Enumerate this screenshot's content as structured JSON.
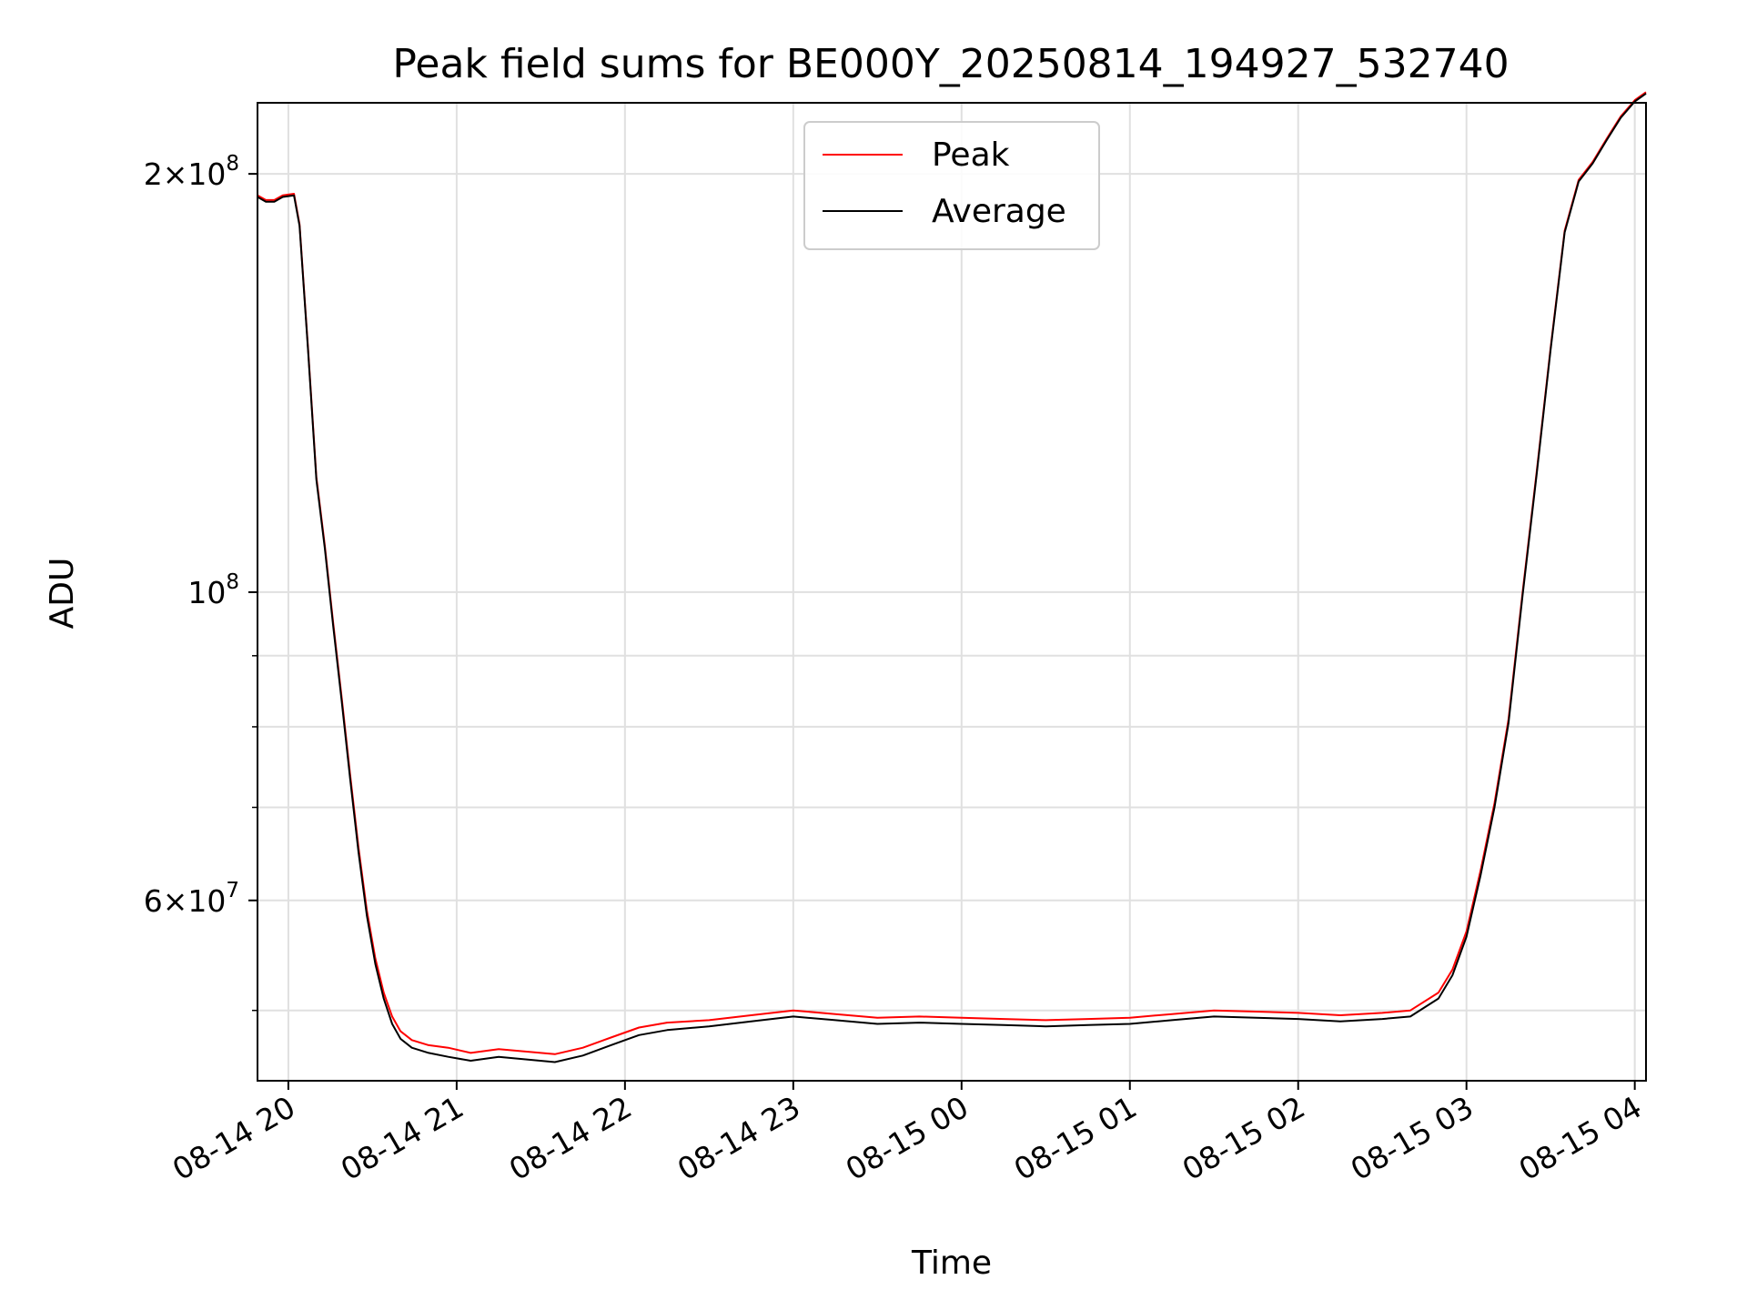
{
  "chart_data": {
    "type": "line",
    "title": "Peak field sums for BE000Y_20250814_194927_532740",
    "xlabel": "Time",
    "ylabel": "ADU",
    "yscale": "log",
    "ylim": [
      44500000,
      225000000
    ],
    "xlim": [
      "2025-08-14 19:49",
      "2025-08-15 04:04"
    ],
    "xticks": [
      {
        "t": "2025-08-14 20:00",
        "label": "08-14 20"
      },
      {
        "t": "2025-08-14 21:00",
        "label": "08-14 21"
      },
      {
        "t": "2025-08-14 22:00",
        "label": "08-14 22"
      },
      {
        "t": "2025-08-14 23:00",
        "label": "08-14 23"
      },
      {
        "t": "2025-08-15 00:00",
        "label": "08-15 00"
      },
      {
        "t": "2025-08-15 01:00",
        "label": "08-15 01"
      },
      {
        "t": "2025-08-15 02:00",
        "label": "08-15 02"
      },
      {
        "t": "2025-08-15 03:00",
        "label": "08-15 03"
      },
      {
        "t": "2025-08-15 04:00",
        "label": "08-15 04"
      }
    ],
    "yticks_major": [
      {
        "value": 60000000,
        "base": "6×10",
        "exp": "7"
      },
      {
        "value": 100000000,
        "base": "10",
        "exp": "8"
      },
      {
        "value": 200000000,
        "base": "2×10",
        "exp": "8"
      }
    ],
    "yticks_minor": [
      50000000,
      70000000,
      80000000,
      90000000
    ],
    "grid": true,
    "legend_position": "top-center",
    "series": [
      {
        "name": "Peak",
        "color": "#ff0000",
        "x": [
          "2025-08-14 19:49",
          "2025-08-14 19:52",
          "2025-08-14 19:55",
          "2025-08-14 19:58",
          "2025-08-14 20:02",
          "2025-08-14 20:04",
          "2025-08-14 20:07",
          "2025-08-14 20:10",
          "2025-08-14 20:13",
          "2025-08-14 20:16",
          "2025-08-14 20:19",
          "2025-08-14 20:22",
          "2025-08-14 20:25",
          "2025-08-14 20:28",
          "2025-08-14 20:31",
          "2025-08-14 20:34",
          "2025-08-14 20:37",
          "2025-08-14 20:40",
          "2025-08-14 20:44",
          "2025-08-14 20:50",
          "2025-08-14 20:57",
          "2025-08-14 21:05",
          "2025-08-14 21:15",
          "2025-08-14 21:25",
          "2025-08-14 21:35",
          "2025-08-14 21:45",
          "2025-08-14 21:55",
          "2025-08-14 22:05",
          "2025-08-14 22:15",
          "2025-08-14 22:30",
          "2025-08-14 22:45",
          "2025-08-14 23:00",
          "2025-08-14 23:15",
          "2025-08-14 23:30",
          "2025-08-14 23:45",
          "2025-08-15 00:00",
          "2025-08-15 00:15",
          "2025-08-15 00:30",
          "2025-08-15 00:45",
          "2025-08-15 01:00",
          "2025-08-15 01:15",
          "2025-08-15 01:30",
          "2025-08-15 01:45",
          "2025-08-15 02:00",
          "2025-08-15 02:15",
          "2025-08-15 02:30",
          "2025-08-15 02:40",
          "2025-08-15 02:50",
          "2025-08-15 02:55",
          "2025-08-15 03:00",
          "2025-08-15 03:05",
          "2025-08-15 03:10",
          "2025-08-15 03:15",
          "2025-08-15 03:20",
          "2025-08-15 03:25",
          "2025-08-15 03:30",
          "2025-08-15 03:35",
          "2025-08-15 03:40",
          "2025-08-15 03:45",
          "2025-08-15 03:50",
          "2025-08-15 03:55",
          "2025-08-15 04:00",
          "2025-08-15 04:04"
        ],
        "y": [
          193000000,
          191500000,
          191500000,
          193000000,
          193500000,
          184000000,
          150000000,
          121000000,
          108000000,
          95000000,
          84000000,
          74000000,
          65500000,
          59000000,
          54500000,
          51500000,
          49500000,
          48300000,
          47600000,
          47200000,
          47000000,
          46600000,
          46900000,
          46700000,
          46500000,
          47000000,
          47800000,
          48600000,
          49000000,
          49200000,
          49600000,
          50000000,
          49700000,
          49400000,
          49500000,
          49400000,
          49300000,
          49200000,
          49300000,
          49400000,
          49700000,
          50000000,
          49900000,
          49800000,
          49600000,
          49800000,
          50000000,
          51500000,
          53500000,
          57000000,
          63000000,
          70500000,
          81000000,
          100000000,
          122000000,
          150000000,
          182000000,
          198000000,
          204000000,
          212000000,
          220000000,
          226000000,
          229000000
        ]
      },
      {
        "name": "Average",
        "color": "#000000",
        "x": [
          "2025-08-14 19:49",
          "2025-08-14 19:52",
          "2025-08-14 19:55",
          "2025-08-14 19:58",
          "2025-08-14 20:02",
          "2025-08-14 20:04",
          "2025-08-14 20:07",
          "2025-08-14 20:10",
          "2025-08-14 20:13",
          "2025-08-14 20:16",
          "2025-08-14 20:19",
          "2025-08-14 20:22",
          "2025-08-14 20:25",
          "2025-08-14 20:28",
          "2025-08-14 20:31",
          "2025-08-14 20:34",
          "2025-08-14 20:37",
          "2025-08-14 20:40",
          "2025-08-14 20:44",
          "2025-08-14 20:50",
          "2025-08-14 20:57",
          "2025-08-14 21:05",
          "2025-08-14 21:15",
          "2025-08-14 21:25",
          "2025-08-14 21:35",
          "2025-08-14 21:45",
          "2025-08-14 21:55",
          "2025-08-14 22:05",
          "2025-08-14 22:15",
          "2025-08-14 22:30",
          "2025-08-14 22:45",
          "2025-08-14 23:00",
          "2025-08-14 23:15",
          "2025-08-14 23:30",
          "2025-08-14 23:45",
          "2025-08-15 00:00",
          "2025-08-15 00:15",
          "2025-08-15 00:30",
          "2025-08-15 00:45",
          "2025-08-15 01:00",
          "2025-08-15 01:15",
          "2025-08-15 01:30",
          "2025-08-15 01:45",
          "2025-08-15 02:00",
          "2025-08-15 02:15",
          "2025-08-15 02:30",
          "2025-08-15 02:40",
          "2025-08-15 02:50",
          "2025-08-15 02:55",
          "2025-08-15 03:00",
          "2025-08-15 03:05",
          "2025-08-15 03:10",
          "2025-08-15 03:15",
          "2025-08-15 03:20",
          "2025-08-15 03:25",
          "2025-08-15 03:30",
          "2025-08-15 03:35",
          "2025-08-15 03:40",
          "2025-08-15 03:45",
          "2025-08-15 03:50",
          "2025-08-15 03:55",
          "2025-08-15 04:00",
          "2025-08-15 04:04"
        ],
        "y": [
          192500000,
          191000000,
          191000000,
          192500000,
          193000000,
          183500000,
          149500000,
          120500000,
          107500000,
          94500000,
          83500000,
          73500000,
          65000000,
          58500000,
          54000000,
          51000000,
          48900000,
          47700000,
          47000000,
          46600000,
          46300000,
          46000000,
          46300000,
          46100000,
          45900000,
          46400000,
          47200000,
          48000000,
          48400000,
          48700000,
          49100000,
          49500000,
          49200000,
          48900000,
          49000000,
          48900000,
          48800000,
          48700000,
          48800000,
          48900000,
          49200000,
          49500000,
          49400000,
          49300000,
          49100000,
          49300000,
          49500000,
          51000000,
          53000000,
          56500000,
          62500000,
          70000000,
          80500000,
          99500000,
          121500000,
          149500000,
          181500000,
          197500000,
          203500000,
          211500000,
          219500000,
          225500000,
          228500000
        ]
      }
    ]
  }
}
